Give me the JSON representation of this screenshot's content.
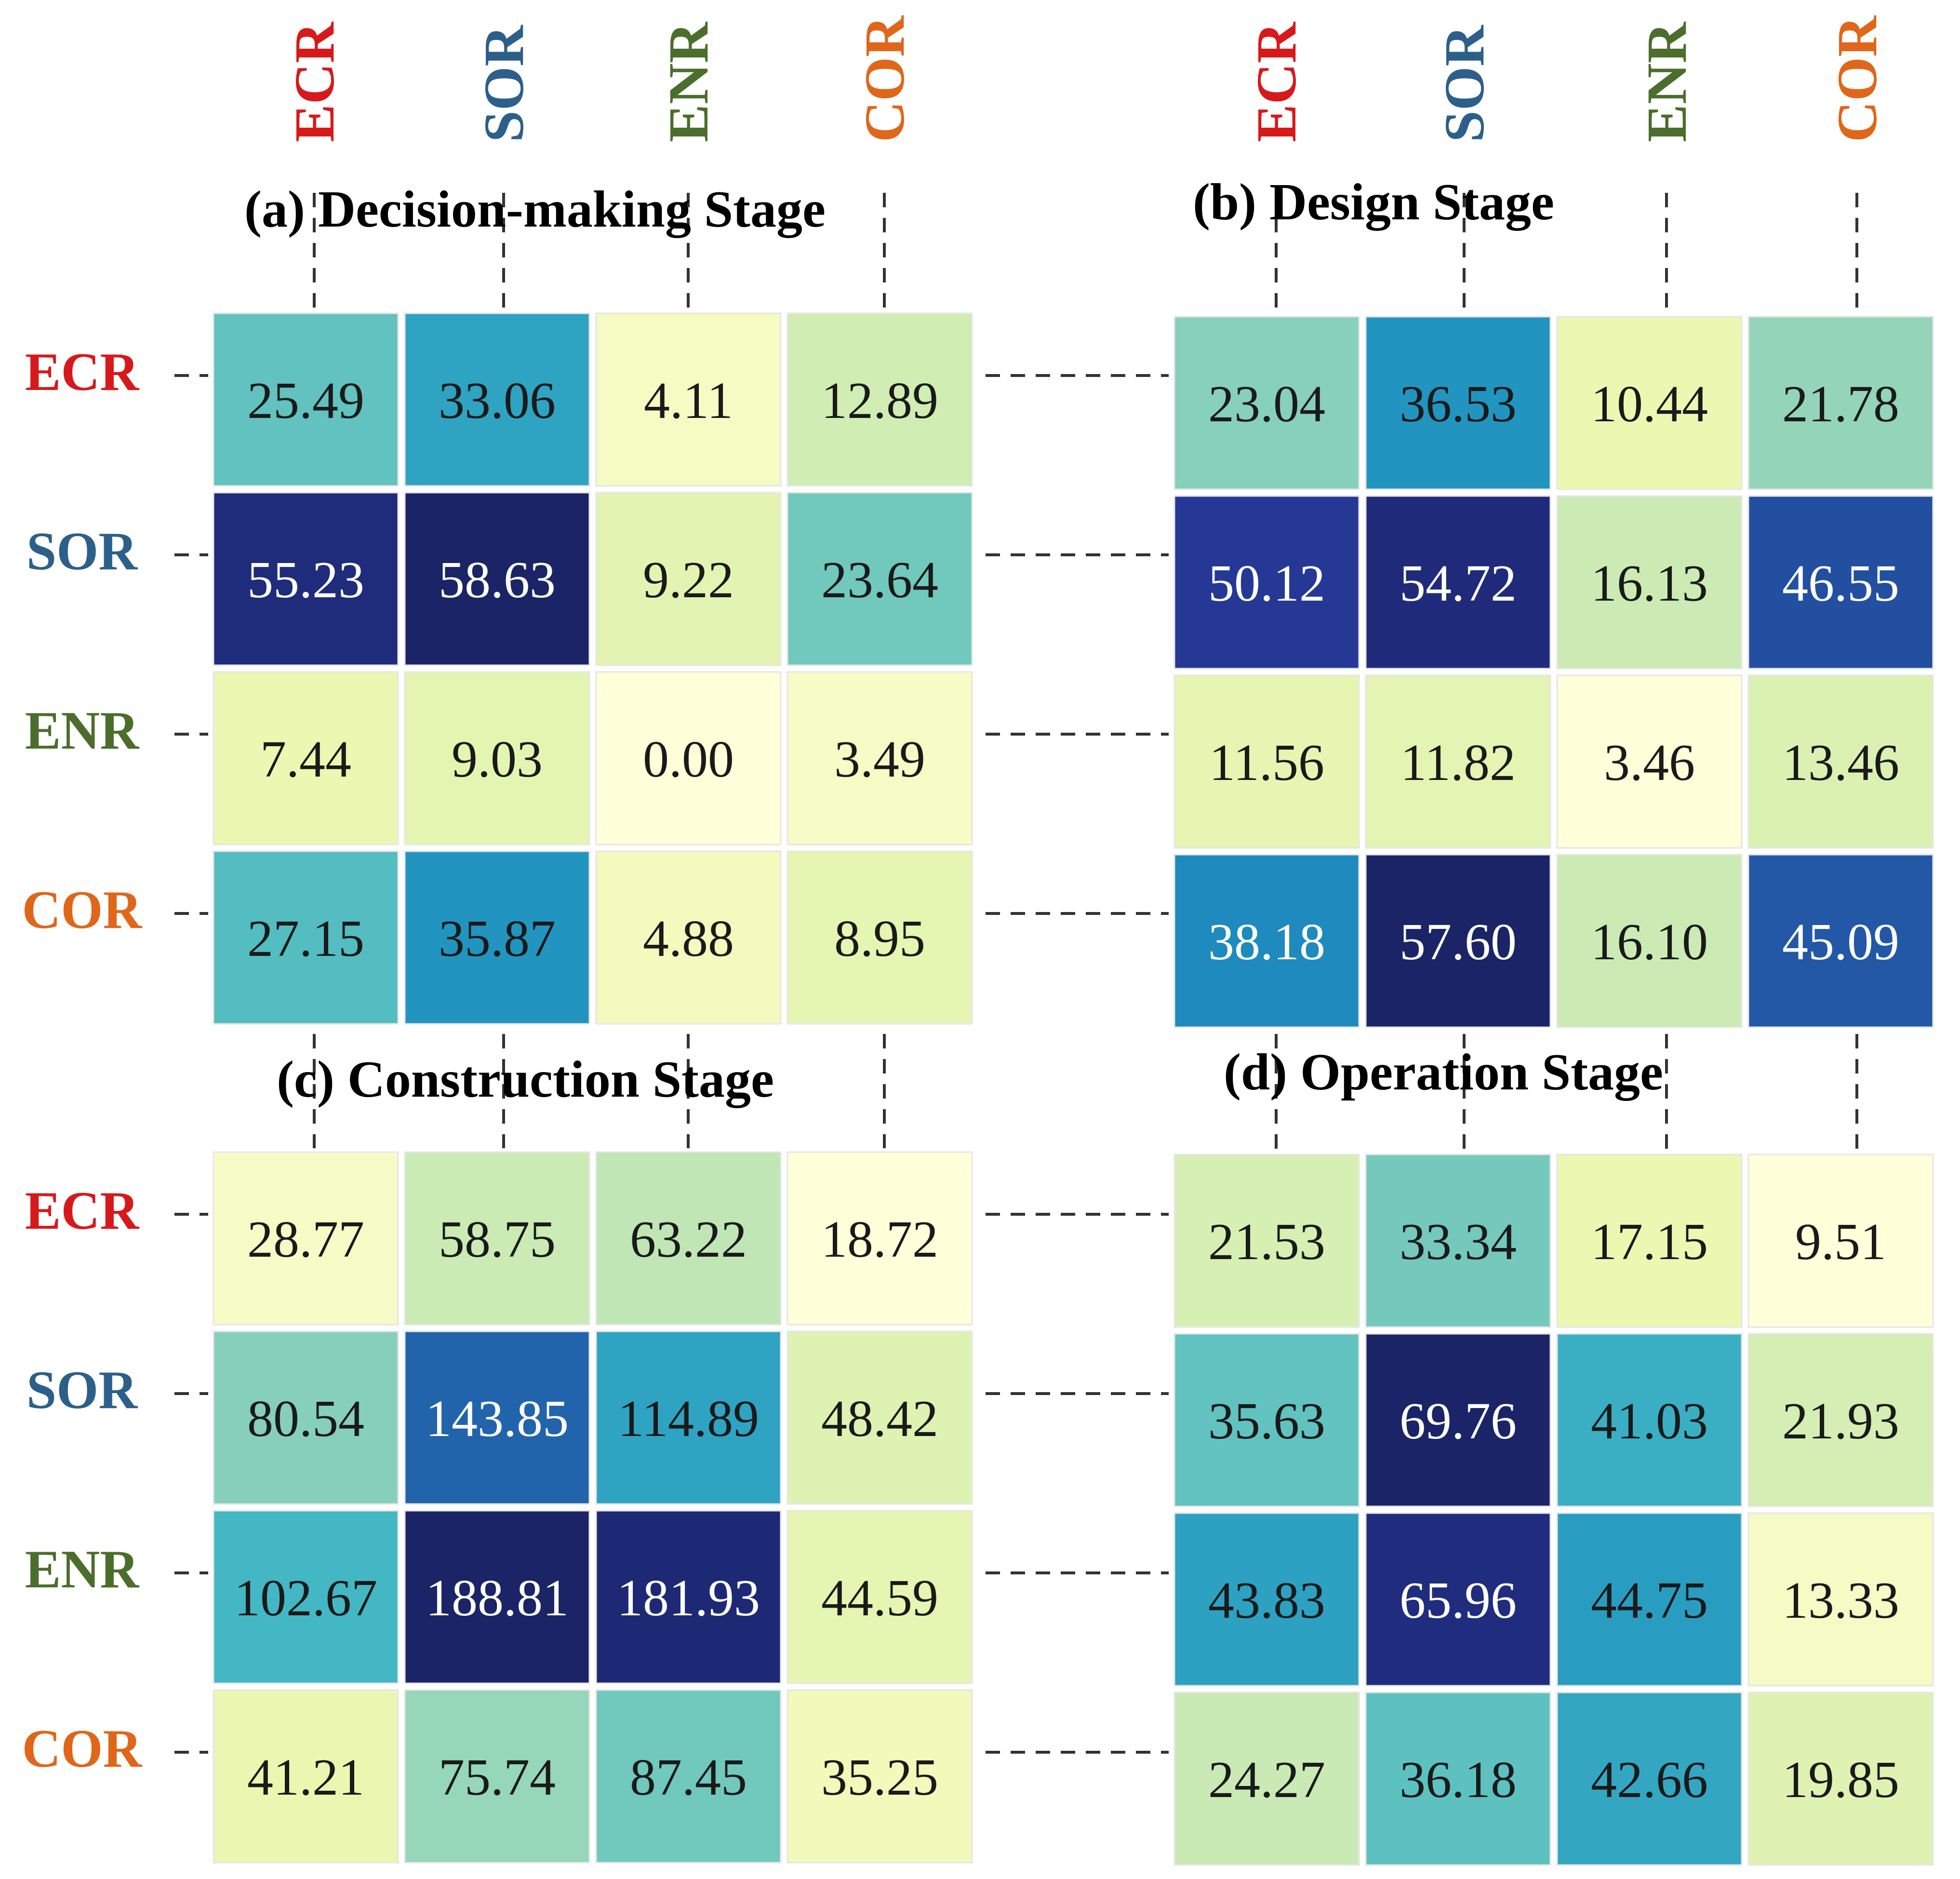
{
  "colors": {
    "ECR": "#d7191c",
    "SOR": "#2c5f8a",
    "ENR": "#4b6e2c",
    "COR": "#e0661a",
    "scale": [
      "#ffffd9",
      "#edf8b1",
      "#c7e9b4",
      "#7fcdbb",
      "#41b6c4",
      "#1d91c0",
      "#225ea8",
      "#253494",
      "#1a2466"
    ]
  },
  "chart_data": [
    {
      "type": "heatmap",
      "panel": "a",
      "title": "(a) Decision-making Stage",
      "rows": [
        "ECR",
        "SOR",
        "ENR",
        "COR"
      ],
      "columns": [
        "ECR",
        "SOR",
        "ENR",
        "COR"
      ],
      "values": [
        [
          25.49,
          33.06,
          4.11,
          12.89
        ],
        [
          55.23,
          58.63,
          9.22,
          23.64
        ],
        [
          7.44,
          9.03,
          0.0,
          3.49
        ],
        [
          27.15,
          35.87,
          4.88,
          8.95
        ]
      ],
      "labels": [
        [
          "25.49",
          "33.06",
          "4.11",
          "12.89"
        ],
        [
          "55.23",
          "58.63",
          "9.22",
          "23.64"
        ],
        [
          "7.44",
          "9.03",
          "0.00",
          "3.49"
        ],
        [
          "27.15",
          "35.87",
          "4.88",
          "8.95"
        ]
      ]
    },
    {
      "type": "heatmap",
      "panel": "b",
      "title": "(b) Design Stage",
      "rows": [
        "ECR",
        "SOR",
        "ENR",
        "COR"
      ],
      "columns": [
        "ECR",
        "SOR",
        "ENR",
        "COR"
      ],
      "values": [
        [
          23.04,
          36.53,
          10.44,
          21.78
        ],
        [
          50.12,
          54.72,
          16.13,
          46.55
        ],
        [
          11.56,
          11.82,
          3.46,
          13.46
        ],
        [
          38.18,
          57.6,
          16.1,
          45.09
        ]
      ],
      "labels": [
        [
          "23.04",
          "36.53",
          "10.44",
          "21.78"
        ],
        [
          "50.12",
          "54.72",
          "16.13",
          "46.55"
        ],
        [
          "11.56",
          "11.82",
          "3.46",
          "13.46"
        ],
        [
          "38.18",
          "57.60",
          "16.10",
          "45.09"
        ]
      ]
    },
    {
      "type": "heatmap",
      "panel": "c",
      "title": "(c) Construction Stage",
      "rows": [
        "ECR",
        "SOR",
        "ENR",
        "COR"
      ],
      "columns": [
        "ECR",
        "SOR",
        "ENR",
        "COR"
      ],
      "values": [
        [
          28.77,
          58.75,
          63.22,
          18.72
        ],
        [
          80.54,
          143.85,
          114.89,
          48.42
        ],
        [
          102.67,
          188.81,
          181.93,
          44.59
        ],
        [
          41.21,
          75.74,
          87.45,
          35.25
        ]
      ],
      "labels": [
        [
          "28.77",
          "58.75",
          "63.22",
          "18.72"
        ],
        [
          "80.54",
          "143.85",
          "114.89",
          "48.42"
        ],
        [
          "102.67",
          "188.81",
          "181.93",
          "44.59"
        ],
        [
          "41.21",
          "75.74",
          "87.45",
          "35.25"
        ]
      ]
    },
    {
      "type": "heatmap",
      "panel": "d",
      "title": "(d) Operation Stage",
      "rows": [
        "ECR",
        "SOR",
        "ENR",
        "COR"
      ],
      "columns": [
        "ECR",
        "SOR",
        "ENR",
        "COR"
      ],
      "values": [
        [
          21.53,
          33.34,
          17.15,
          9.51
        ],
        [
          35.63,
          69.76,
          41.03,
          21.93
        ],
        [
          43.83,
          65.96,
          44.75,
          13.33
        ],
        [
          24.27,
          36.18,
          42.66,
          19.85
        ]
      ],
      "labels": [
        [
          "21.53",
          "33.34",
          "17.15",
          "9.51"
        ],
        [
          "35.63",
          "69.76",
          "41.03",
          "21.93"
        ],
        [
          "43.83",
          "65.96",
          "44.75",
          "13.33"
        ],
        [
          "24.27",
          "36.18",
          "42.66",
          "19.85"
        ]
      ]
    }
  ]
}
